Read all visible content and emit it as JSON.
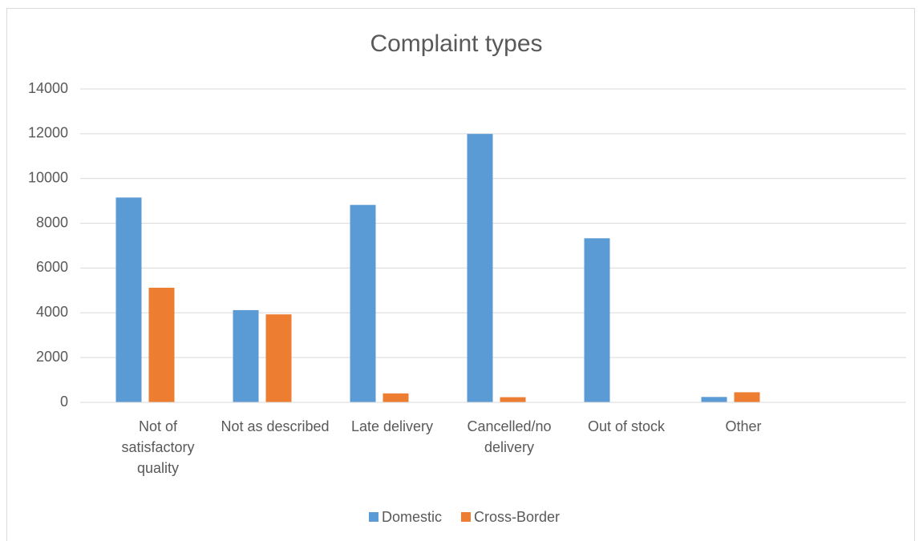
{
  "chart_data": {
    "type": "bar",
    "title": "Complaint types",
    "categories": [
      "Not of satisfactory quality",
      "Not as described",
      "Late delivery",
      "Cancelled/no delivery",
      "Out of stock",
      "Other",
      null
    ],
    "series": [
      {
        "name": "Domestic",
        "color": "#5b9bd5",
        "values": [
          9150,
          4120,
          8820,
          11990,
          7330,
          240,
          null
        ]
      },
      {
        "name": "Cross-Border",
        "color": "#ed7d31",
        "values": [
          5120,
          3930,
          400,
          230,
          0,
          450,
          null
        ]
      }
    ],
    "ylim": [
      0,
      14000
    ],
    "yticks": [
      0,
      2000,
      4000,
      6000,
      8000,
      10000,
      12000,
      14000
    ],
    "grid": true,
    "legend": "bottom"
  }
}
